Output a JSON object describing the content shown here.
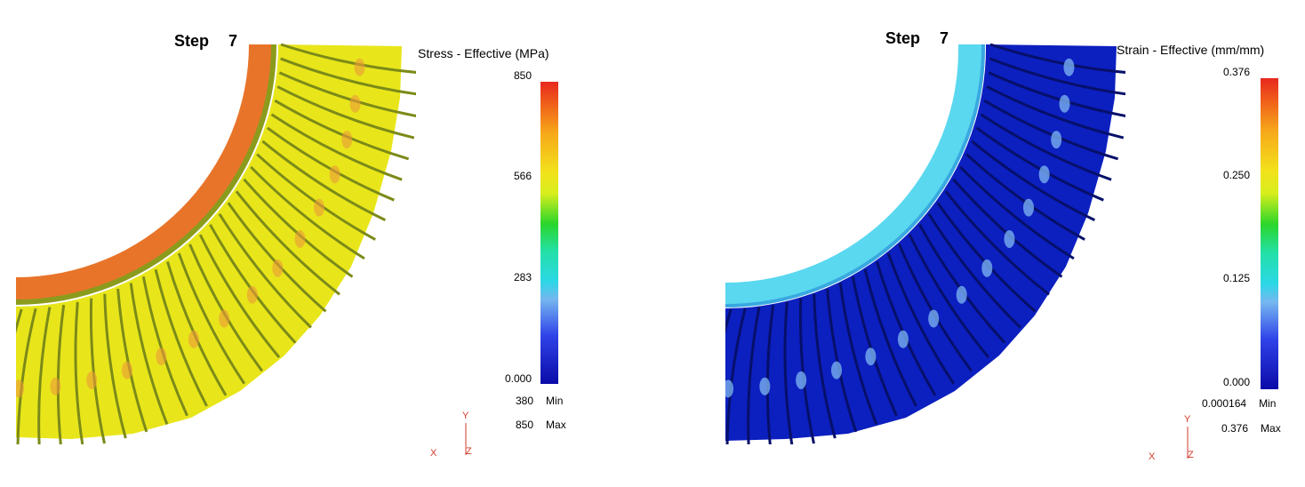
{
  "panels": [
    {
      "step_label": "Step",
      "step_value": "7",
      "legend_title": "Stress - Effective (MPa)",
      "ticks": [
        "850",
        "566",
        "283",
        "0.000"
      ],
      "min_value": "380",
      "min_label": "Min",
      "max_value": "850",
      "max_label": "Max",
      "axis": {
        "y": "Y",
        "x": "X",
        "z": "Z"
      },
      "colors": {
        "base": "#e8e61a",
        "hot": "#e8742a",
        "groove": "#7c8a18"
      }
    },
    {
      "step_label": "Step",
      "step_value": "7",
      "legend_title": "Strain - Effective (mm/mm)",
      "ticks": [
        "0.376",
        "0.250",
        "0.125",
        "0.000"
      ],
      "min_value": "0.000164",
      "min_label": "Min",
      "max_value": "0.376",
      "max_label": "Max",
      "axis": {
        "y": "Y",
        "x": "X",
        "z": "Z"
      },
      "colors": {
        "base": "#0c1fbf",
        "hot": "#5ad8f0",
        "groove": "#06106a"
      }
    }
  ]
}
